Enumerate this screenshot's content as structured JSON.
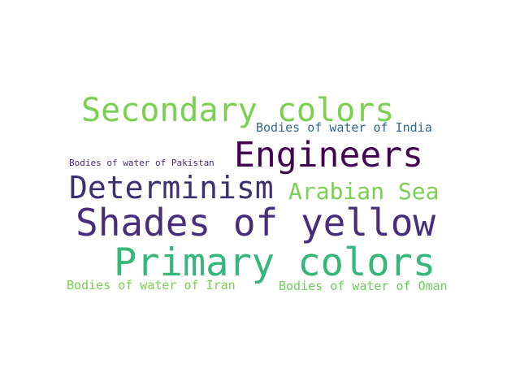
{
  "words": [
    {
      "text": "Secondary colors",
      "color": "#7ad151"
    },
    {
      "text": "Bodies of water of India",
      "color": "#31688e"
    },
    {
      "text": "Engineers",
      "color": "#440154"
    },
    {
      "text": "Bodies of water of Pakistan",
      "color": "#482878"
    },
    {
      "text": "Determinism",
      "color": "#3e2f71"
    },
    {
      "text": "Arabian Sea",
      "color": "#7ad151"
    },
    {
      "text": "Shades of yellow",
      "color": "#472d7b"
    },
    {
      "text": "Primary colors",
      "color": "#35b779"
    },
    {
      "text": "Bodies of water of Iran",
      "color": "#7ad151"
    },
    {
      "text": "Bodies of water of Oman",
      "color": "#6ccd5a"
    }
  ]
}
